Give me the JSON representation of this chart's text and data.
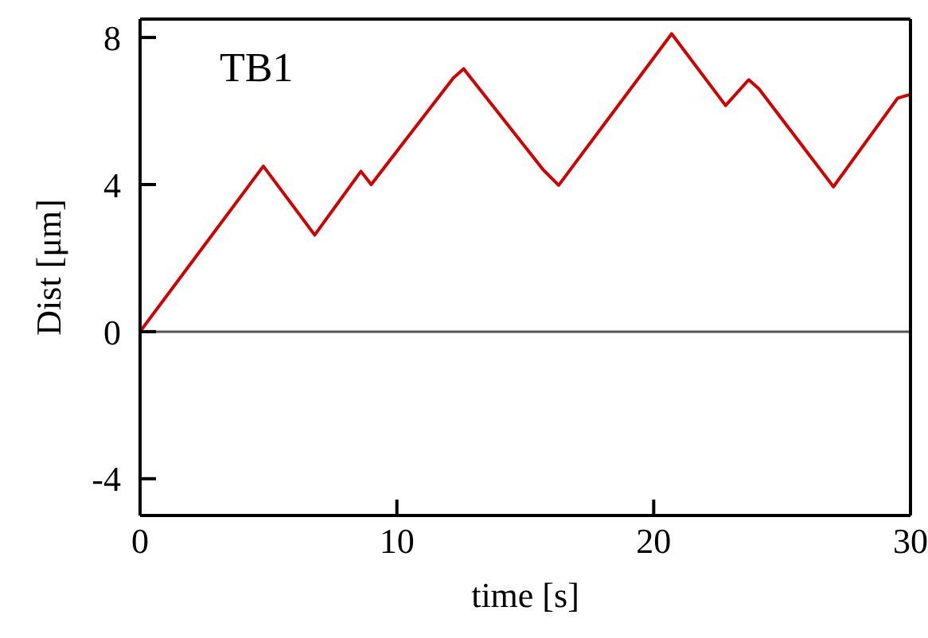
{
  "chart_data": {
    "type": "line",
    "xlabel": "time [s]",
    "ylabel": "Dist [μm]",
    "annotations": [
      "TB1"
    ],
    "x": [
      0,
      4.8,
      6.8,
      8.6,
      9.0,
      12.2,
      12.6,
      15.7,
      16.3,
      20.7,
      22.8,
      23.7,
      24.1,
      27.0,
      29.5,
      30
    ],
    "series": [
      {
        "color": "#d40000",
        "values": [
          0,
          4.5,
          2.63,
          4.36,
          4.0,
          6.9,
          7.15,
          4.4,
          3.98,
          8.1,
          6.15,
          6.85,
          6.6,
          3.94,
          6.35,
          6.45
        ]
      }
    ],
    "xlim": [
      0,
      30
    ],
    "xticks": [
      0,
      10,
      20,
      30
    ],
    "ylim": [
      -5,
      8.5
    ],
    "yticks": [
      -4,
      0,
      4,
      8
    ],
    "ref_lines": [
      {
        "axis": "y",
        "value": 0,
        "color": "#555555"
      }
    ],
    "grid": false,
    "legend": false,
    "marker": "none",
    "line_style": "solid"
  }
}
